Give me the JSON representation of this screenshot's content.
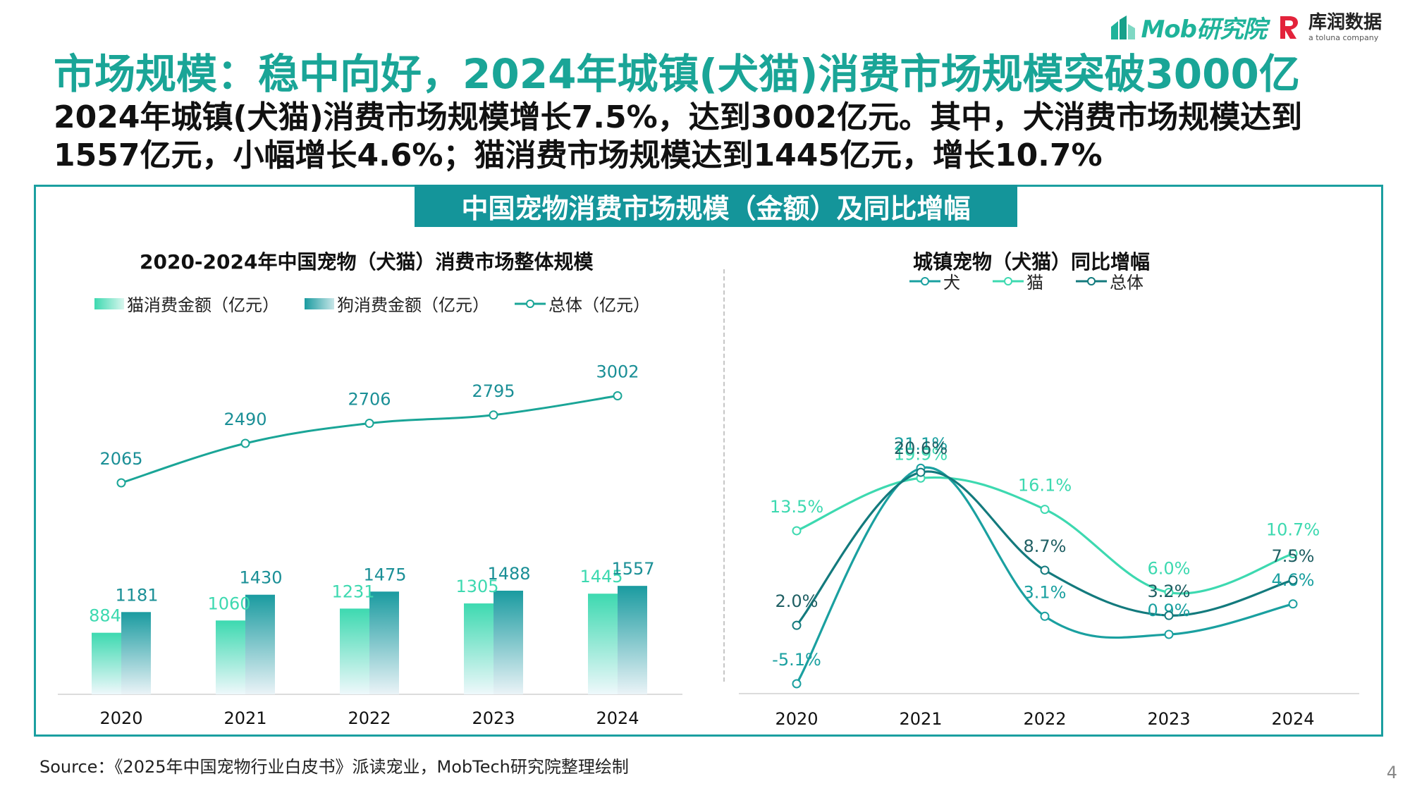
{
  "brand": {
    "mob_logo_text": "Mob研究院",
    "kr_logo_title": "库润数据",
    "kr_logo_sub": "a toluna company"
  },
  "title": "市场规模：稳中向好，2024年城镇(犬猫)消费市场规模突破3000亿",
  "subtitle": "2024年城镇(犬猫)消费市场规模增长7.5%，达到3002亿元。其中，犬消费市场规模达到1557亿元，小幅增长4.6%；猫消费市场规模达到1445亿元，增长10.7%",
  "panel_header": "中国宠物消费市场规模（金额）及同比增幅",
  "source": "Source：《2025年中国宠物行业白皮书》派读宠业，MobTech研究院整理绘制",
  "page_number": "4",
  "colors": {
    "accent": "#1aa597",
    "header_bg": "#14959a",
    "cat": "#3dd9b0",
    "dog": "#1a9ba0",
    "dog_growth": "#1aa0a0",
    "cat_growth": "#3dd9b0",
    "total_growth": "#137a7d"
  },
  "chart_data": [
    {
      "type": "bar",
      "title": "2020-2024年中国宠物（犬猫）消费市场整体规模",
      "categories": [
        "2020",
        "2021",
        "2022",
        "2023",
        "2024"
      ],
      "series": [
        {
          "name": "猫消费金额（亿元）",
          "type": "bar",
          "values": [
            884,
            1060,
            1231,
            1305,
            1445
          ]
        },
        {
          "name": "狗消费金额（亿元）",
          "type": "bar",
          "values": [
            1181,
            1430,
            1475,
            1488,
            1557
          ]
        },
        {
          "name": "总体（亿元）",
          "type": "line",
          "values": [
            2065,
            2490,
            2706,
            2795,
            3002
          ]
        }
      ],
      "legend_position": "top-left",
      "grid": false
    },
    {
      "type": "line",
      "title": "城镇宠物（犬猫）同比增幅",
      "categories": [
        "2020",
        "2021",
        "2022",
        "2023",
        "2024"
      ],
      "series": [
        {
          "name": "犬",
          "values": [
            -5.1,
            21.1,
            3.1,
            0.9,
            4.6
          ],
          "labels": [
            "-5.1%",
            "21.1%",
            "3.1%",
            "0.9%",
            "4.6%"
          ]
        },
        {
          "name": "猫",
          "values": [
            13.5,
            19.9,
            16.1,
            6.0,
            10.7
          ],
          "labels": [
            "13.5%",
            "19.9%",
            "16.1%",
            "6.0%",
            "10.7%"
          ]
        },
        {
          "name": "总体",
          "values": [
            2.0,
            20.6,
            8.7,
            3.2,
            7.5
          ],
          "labels": [
            "2.0%",
            "20.6%",
            "8.7%",
            "3.2%",
            "7.5%"
          ]
        }
      ],
      "legend_position": "top",
      "grid": false
    }
  ]
}
